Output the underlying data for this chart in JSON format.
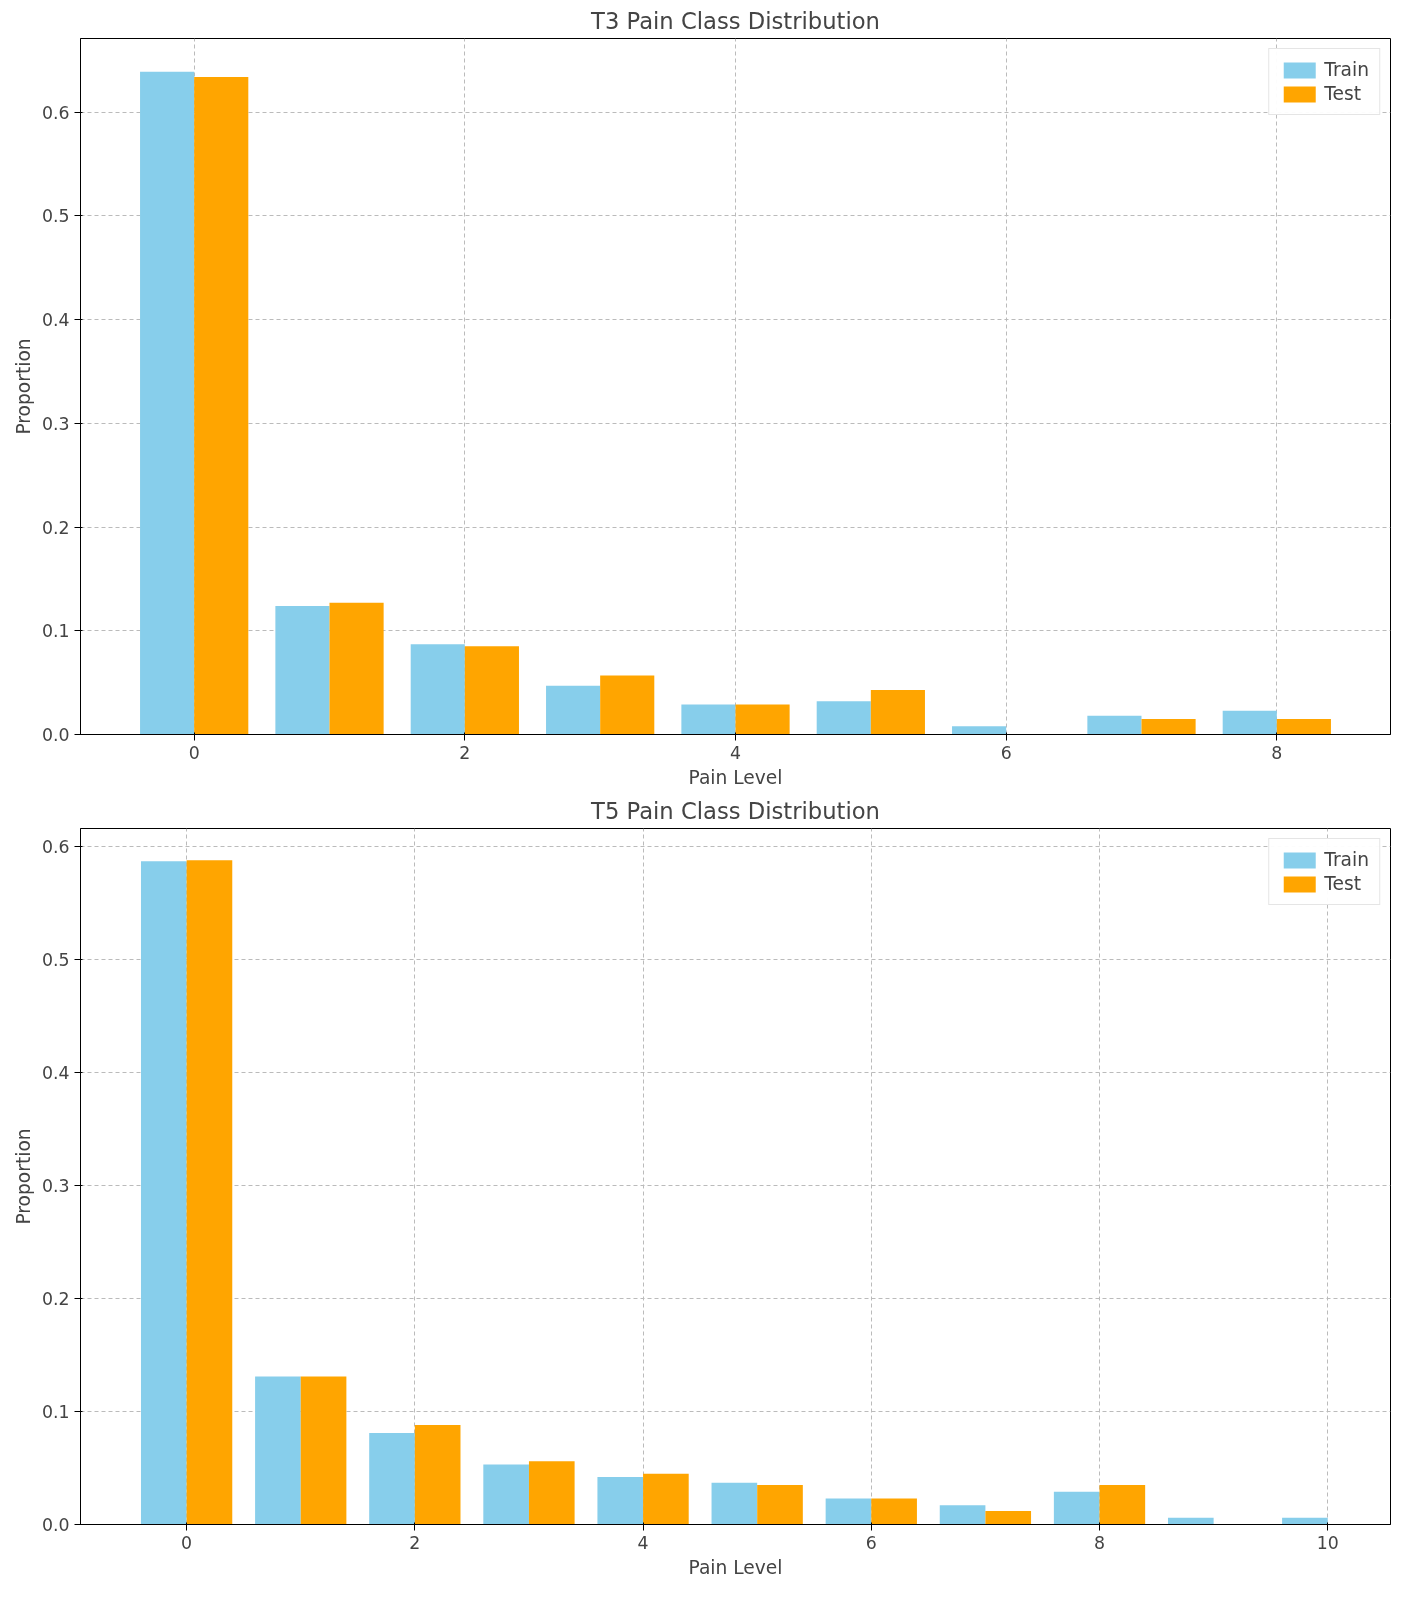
{
  "chart_data": [
    {
      "type": "bar",
      "title": "T3 Pain Class Distribution",
      "xlabel": "Pain Level",
      "ylabel": "Proportion",
      "x": [
        0,
        1,
        2,
        3,
        4,
        5,
        6,
        7,
        8
      ],
      "series": [
        {
          "name": "Train",
          "color": "#87ceeb",
          "values": [
            0.639,
            0.124,
            0.087,
            0.047,
            0.029,
            0.032,
            0.008,
            0.018,
            0.023
          ]
        },
        {
          "name": "Test",
          "color": "#ffa500",
          "values": [
            0.634,
            0.127,
            0.085,
            0.057,
            0.029,
            0.043,
            0.0,
            0.015,
            0.015
          ]
        }
      ],
      "xlim": [
        -0.84,
        8.84
      ],
      "xticks": [
        0,
        2,
        4,
        6,
        8
      ],
      "ylim": [
        0,
        0.671
      ],
      "yticks": [
        {
          "value": 0,
          "label": "0.0"
        },
        0.1,
        0.2,
        0.3,
        0.4,
        0.5,
        0.6
      ],
      "grid": true,
      "legend": "top right"
    },
    {
      "type": "bar",
      "title": "T5 Pain Class Distribution",
      "xlabel": "Pain Level",
      "ylabel": "Proportion",
      "x": [
        0,
        1,
        2,
        3,
        4,
        5,
        6,
        7,
        8,
        9,
        10
      ],
      "series": [
        {
          "name": "Train",
          "color": "#87ceeb",
          "values": [
            0.587,
            0.131,
            0.081,
            0.053,
            0.042,
            0.037,
            0.023,
            0.017,
            0.029,
            0.006,
            0.006
          ]
        },
        {
          "name": "Test",
          "color": "#ffa500",
          "values": [
            0.588,
            0.131,
            0.088,
            0.056,
            0.045,
            0.035,
            0.023,
            0.012,
            0.035,
            0.0,
            0.0
          ]
        }
      ],
      "xlim": [
        -0.93,
        10.55
      ],
      "xticks": [
        0,
        2,
        4,
        6,
        8,
        10
      ],
      "ylim": [
        0,
        0.616
      ],
      "yticks": [
        {
          "value": 0,
          "label": "0.0"
        },
        0.1,
        0.2,
        0.3,
        0.4,
        0.5,
        0.6
      ],
      "grid": true,
      "legend": "top right"
    }
  ]
}
